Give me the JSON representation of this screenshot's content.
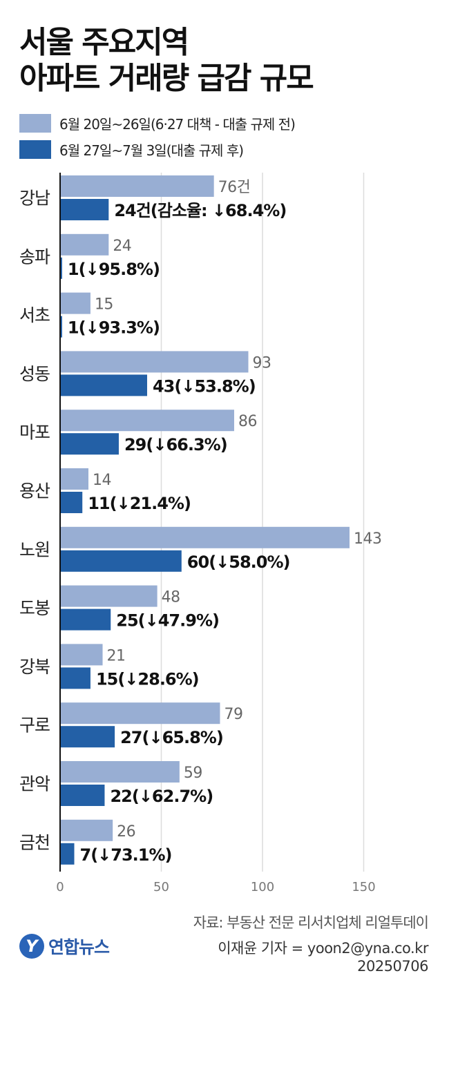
{
  "title": {
    "line1": "서울 주요지역",
    "line2": "아파트 거래량 급감 규모"
  },
  "legend": [
    {
      "label": "6월 20일~26일(6·27 대책 - 대출 규제 전)",
      "color": "#98aed3"
    },
    {
      "label": "6월 27일~7월 3일(대출 규제 후)",
      "color": "#2360a6"
    }
  ],
  "chart_data": {
    "type": "bar",
    "orientation": "horizontal",
    "categories": [
      "강남",
      "송파",
      "서초",
      "성동",
      "마포",
      "용산",
      "노원",
      "도봉",
      "강북",
      "구로",
      "관악",
      "금천"
    ],
    "series": [
      {
        "name": "6월 20일~26일(6·27 대책 - 대출 규제 전)",
        "values": [
          76,
          24,
          15,
          93,
          86,
          14,
          143,
          48,
          21,
          79,
          59,
          26
        ],
        "color": "#98aed3"
      },
      {
        "name": "6월 27일~7월 3일(대출 규제 후)",
        "values": [
          24,
          1,
          1,
          43,
          29,
          11,
          60,
          25,
          15,
          27,
          22,
          7
        ],
        "color": "#2360a6"
      }
    ],
    "labels_before": [
      "76건",
      "24",
      "15",
      "93",
      "86",
      "14",
      "143",
      "48",
      "21",
      "79",
      "59",
      "26"
    ],
    "labels_after": [
      "24건(감소율: ↓68.4%)",
      "1(↓95.8%)",
      "1(↓93.3%)",
      "43(↓53.8%)",
      "29(↓66.3%)",
      "11(↓21.4%)",
      "60(↓58.0%)",
      "25(↓47.9%)",
      "15(↓28.6%)",
      "27(↓65.8%)",
      "22(↓62.7%)",
      "7(↓73.1%)"
    ],
    "xticks": [
      0,
      50,
      100,
      150
    ],
    "xlim": [
      0,
      185
    ],
    "grid": true,
    "legend_position": "top-left"
  },
  "footer": {
    "source": "자료: 부동산 전문 리서치업체 리얼투데이",
    "reporter": "이재윤 기자 = yoon2@yna.co.kr",
    "date": "20250706",
    "logo_text": "연합뉴스",
    "logo_mark": "Y"
  }
}
